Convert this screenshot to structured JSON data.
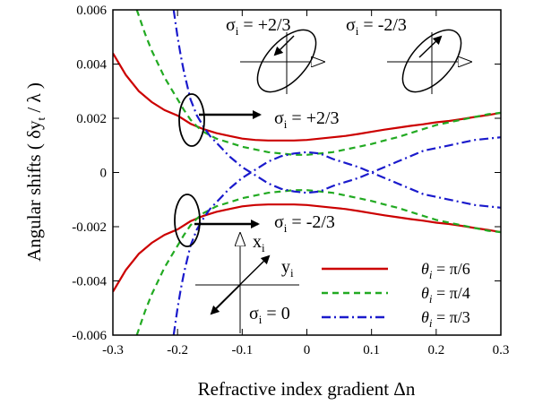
{
  "chart_data": {
    "type": "line",
    "title": "",
    "xlabel": "Refractive index gradient Δn",
    "ylabel": "Angular shifts ( δy",
    "ylabel_sub": "t",
    "ylabel_tail": " / λ )",
    "xlim": [
      -0.3,
      0.3
    ],
    "ylim": [
      -0.006,
      0.006
    ],
    "x_ticks": [
      -0.3,
      -0.2,
      -0.1,
      0,
      0.1,
      0.2,
      0.3
    ],
    "x_tick_labels": [
      "-0.3",
      "-0.2",
      "-0.1",
      "0",
      "0.1",
      "0.2",
      "0.3"
    ],
    "y_ticks": [
      -0.006,
      -0.004,
      -0.002,
      0,
      0.002,
      0.004,
      0.006
    ],
    "y_tick_labels": [
      "-0.006",
      "-0.004",
      "-0.002",
      "0",
      "0.002",
      "0.004",
      "0.006"
    ],
    "grid": false,
    "legend_position": "bottom-right",
    "series": [
      {
        "name": "θi = π/6",
        "legend_prefix": "θ",
        "legend_sub": "i",
        "legend_suffix": " = π/6",
        "color": "#cc0000",
        "dash": "solid",
        "x": [
          -0.3,
          -0.28,
          -0.26,
          -0.24,
          -0.22,
          -0.2,
          -0.18,
          -0.16,
          -0.14,
          -0.12,
          -0.1,
          -0.08,
          -0.06,
          -0.04,
          -0.02,
          0,
          0.02,
          0.04,
          0.06,
          0.08,
          0.1,
          0.12,
          0.14,
          0.16,
          0.18,
          0.2,
          0.22,
          0.24,
          0.26,
          0.28,
          0.3
        ],
        "y": [
          0.0044,
          0.0036,
          0.003,
          0.0026,
          0.0023,
          0.0021,
          0.0018,
          0.0016,
          0.00145,
          0.00135,
          0.00125,
          0.0012,
          0.00118,
          0.00118,
          0.00118,
          0.0012,
          0.00125,
          0.0013,
          0.00135,
          0.00142,
          0.0015,
          0.00158,
          0.00165,
          0.00172,
          0.00178,
          0.00185,
          0.0019,
          0.00197,
          0.00205,
          0.00212,
          0.0022
        ],
        "mirror": true
      },
      {
        "name": "θi = π/4",
        "legend_prefix": "θ",
        "legend_sub": "i",
        "legend_suffix": " = π/4",
        "color": "#22aa22",
        "dash": "dashed",
        "x": [
          -0.263,
          -0.25,
          -0.24,
          -0.23,
          -0.22,
          -0.21,
          -0.2,
          -0.19,
          -0.18,
          -0.17,
          -0.16,
          -0.14,
          -0.12,
          -0.1,
          -0.08,
          -0.06,
          -0.04,
          -0.02,
          0,
          0.02,
          0.04,
          0.06,
          0.08,
          0.1,
          0.12,
          0.14,
          0.16,
          0.18,
          0.2,
          0.22,
          0.24,
          0.26,
          0.28,
          0.3
        ],
        "y": [
          0.006,
          0.0051,
          0.0045,
          0.004,
          0.0035,
          0.0031,
          0.0027,
          0.0023,
          0.00195,
          0.0017,
          0.0015,
          0.00125,
          0.0011,
          0.00095,
          0.00085,
          0.00075,
          0.0007,
          0.00065,
          0.00065,
          0.0007,
          0.00075,
          0.00085,
          0.00095,
          0.00105,
          0.00118,
          0.0013,
          0.00145,
          0.0016,
          0.00175,
          0.00185,
          0.00195,
          0.00205,
          0.00215,
          0.0022
        ],
        "mirror": true
      },
      {
        "name": "θi = π/3",
        "legend_prefix": "θ",
        "legend_sub": "i",
        "legend_suffix": " = π/3",
        "color": "#1a1acc",
        "dash": "dashdot",
        "x": [
          -0.206,
          -0.2,
          -0.195,
          -0.19,
          -0.185,
          -0.18,
          -0.175,
          -0.17,
          -0.16,
          -0.15,
          -0.14,
          -0.13,
          -0.12,
          -0.11,
          -0.1,
          -0.08,
          -0.06,
          -0.04,
          -0.02,
          0,
          0.02,
          0.04,
          0.06,
          0.08,
          0.1,
          0.12,
          0.14,
          0.16,
          0.18,
          0.2,
          0.22,
          0.24,
          0.26,
          0.28,
          0.3
        ],
        "y": [
          0.006,
          0.005,
          0.0043,
          0.0037,
          0.0032,
          0.0027,
          0.0024,
          0.0021,
          0.0017,
          0.00135,
          0.0011,
          0.00085,
          0.0006,
          0.0004,
          0.0002,
          -0.0001,
          -0.0004,
          -0.0006,
          -0.0007,
          -0.00075,
          -0.0007,
          -0.0005,
          -0.00035,
          -0.0002,
          0.0,
          0.0002,
          0.0004,
          0.0006,
          0.0008,
          0.0009,
          0.001,
          0.0011,
          0.0012,
          0.00125,
          0.0013
        ],
        "mirror": true
      }
    ],
    "annotations": {
      "top_sigma_label": "+2/3",
      "bottom_sigma_label": "-2/3",
      "inset_left_label": "+2/3",
      "inset_right_label": "-2/3",
      "zero_label": "0",
      "sigma_symbol": "σ",
      "sigma_sub": "i",
      "axis_x_label": "x",
      "axis_y_label": "y",
      "axis_sub": "i"
    }
  }
}
